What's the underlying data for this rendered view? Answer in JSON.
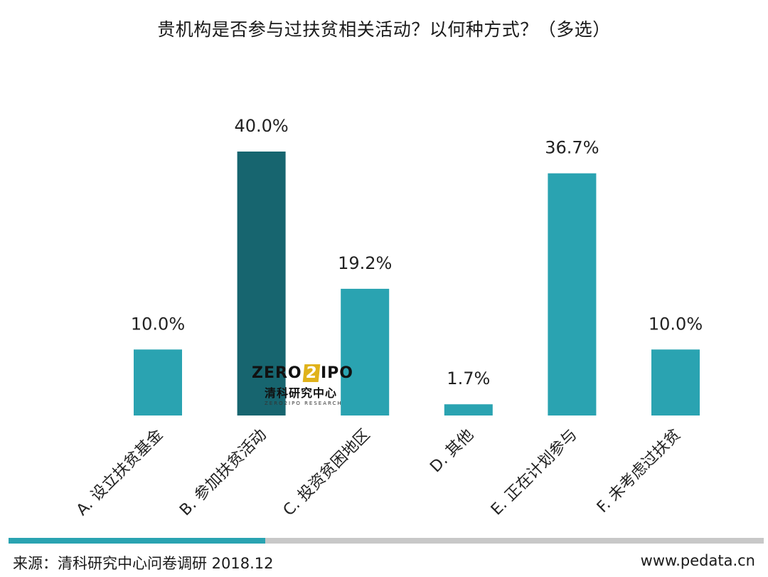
{
  "chart_data": {
    "type": "bar",
    "title": "贵机构是否参与过扶贫相关活动？以何种方式？（多选）",
    "categories": [
      "A. 设立扶贫基金",
      "B. 参加扶贫活动",
      "C. 投资贫困地区",
      "D. 其他",
      "E. 正在计划参与",
      "F. 未考虑过扶贫"
    ],
    "values": [
      10.0,
      40.0,
      19.2,
      1.7,
      36.7,
      10.0
    ],
    "value_labels": [
      "10.0%",
      "40.0%",
      "19.2%",
      "1.7%",
      "36.7%",
      "10.0%"
    ],
    "unit": "%",
    "ylim": [
      0,
      40
    ],
    "grid": false,
    "bar_color": "#2aa3b1",
    "highlight_index": 1,
    "highlight_color": "#17656f"
  },
  "watermark": {
    "brand_left": "ZERO",
    "brand_mid": "2",
    "brand_right": "IPO",
    "cn": "清科研究中心",
    "en": "ZERO2IPO RESEARCH"
  },
  "footer": {
    "source": "来源：清科研究中心问卷调研 2018.12",
    "site": "www.pedata.cn",
    "progress_fraction": 0.34,
    "bar_color": "#2aa3b1",
    "track_color": "#c8c8c8"
  }
}
